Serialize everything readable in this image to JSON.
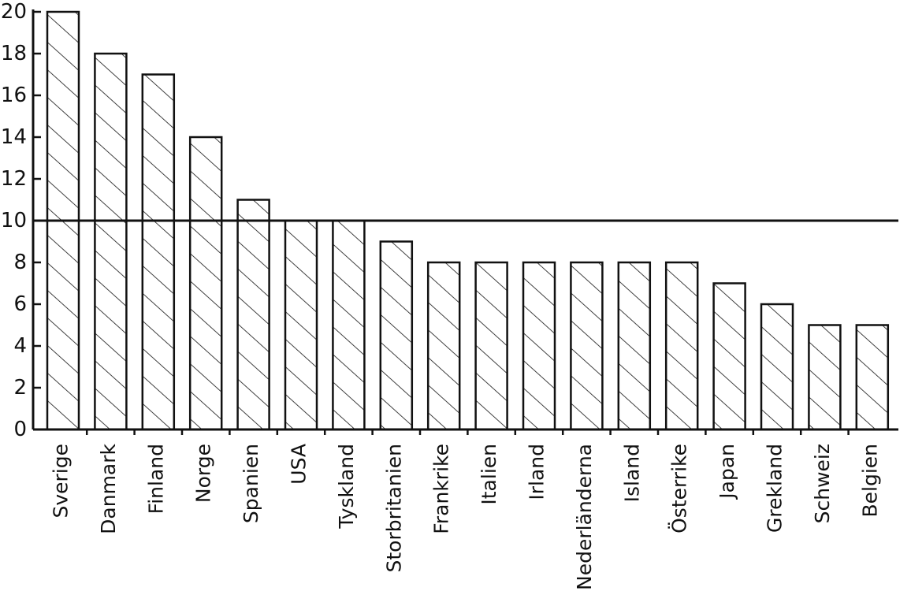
{
  "chart_data": {
    "type": "bar",
    "title": "",
    "xlabel": "",
    "ylabel": "",
    "categories": [
      "Sverige",
      "Danmark",
      "Finland",
      "Norge",
      "Spanien",
      "USA",
      "Tyskland",
      "Storbritanien",
      "Frankrike",
      "Italien",
      "Irland",
      "Nederländerna",
      "Island",
      "Österrike",
      "Japan",
      "Grekland",
      "Schweiz",
      "Belgien"
    ],
    "values": [
      20,
      18,
      17,
      14,
      11,
      10,
      10,
      9,
      8,
      8,
      8,
      8,
      8,
      8,
      7,
      6,
      5,
      5
    ],
    "ylim": [
      0,
      20
    ],
    "yticks": [
      0,
      2,
      4,
      6,
      8,
      10,
      12,
      14,
      16,
      18,
      20
    ],
    "reference_line": 10,
    "bar_fill": "diagonal-hatch",
    "colors": {
      "ink": "#111111",
      "background": "#ffffff"
    },
    "grid": false,
    "legend": "none"
  }
}
